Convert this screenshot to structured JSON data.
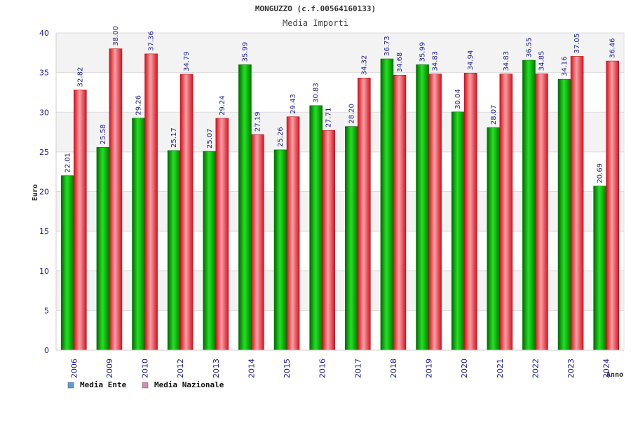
{
  "chart_data": {
    "type": "bar",
    "title": "MONGUZZO (c.f.00564160133)",
    "subtitle": "Media Importi",
    "xlabel": "Anno",
    "ylabel": "Euro",
    "ylim": [
      0,
      40
    ],
    "yticks": [
      0,
      5,
      10,
      15,
      20,
      25,
      30,
      35,
      40
    ],
    "grid": true,
    "legend_position": "bottom-left",
    "categories": [
      "2006",
      "2009",
      "2010",
      "2012",
      "2013",
      "2014",
      "2015",
      "2016",
      "2017",
      "2018",
      "2019",
      "2020",
      "2021",
      "2022",
      "2023",
      "2024"
    ],
    "series": [
      {
        "name": "Media Ente",
        "color": "#00b000",
        "legend_color": "#5b9bd5",
        "values": [
          22.01,
          25.58,
          29.26,
          25.17,
          25.07,
          35.99,
          25.26,
          30.83,
          28.2,
          36.73,
          35.99,
          30.04,
          28.07,
          36.55,
          34.16,
          20.69
        ],
        "labels": [
          "22.01",
          "25.58",
          "29.26",
          "25.17",
          "25.07",
          "35.99",
          "25.26",
          "30.83",
          "28.20",
          "36.73",
          "35.99",
          "30.04",
          "28.07",
          "36.55",
          "34.16",
          "20.69"
        ]
      },
      {
        "name": "Media Nazionale",
        "color": "#e8202a",
        "legend_color": "#d98ab0",
        "values": [
          32.82,
          38.0,
          37.36,
          34.79,
          29.24,
          27.19,
          29.43,
          27.71,
          34.32,
          34.68,
          34.83,
          34.94,
          34.83,
          34.85,
          37.05,
          36.46
        ],
        "labels": [
          "32.82",
          "38.00",
          "37.36",
          "34.79",
          "29.24",
          "27.19",
          "29.43",
          "27.71",
          "34.32",
          "34.68",
          "34.83",
          "34.94",
          "34.83",
          "34.85",
          "37.05",
          "36.46"
        ]
      }
    ]
  }
}
